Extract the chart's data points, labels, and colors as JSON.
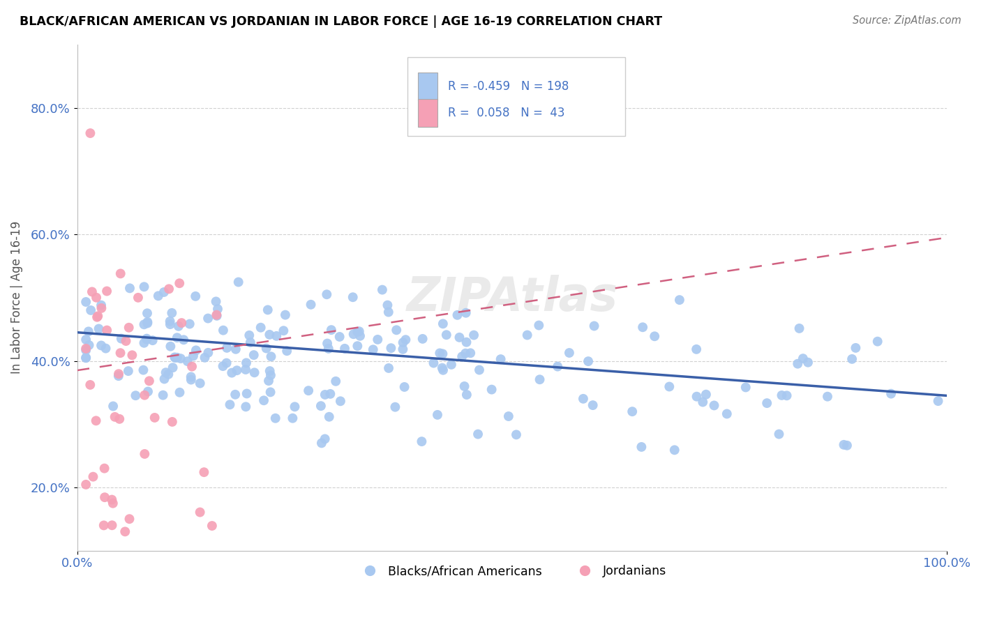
{
  "title": "BLACK/AFRICAN AMERICAN VS JORDANIAN IN LABOR FORCE | AGE 16-19 CORRELATION CHART",
  "source": "Source: ZipAtlas.com",
  "ylabel": "In Labor Force | Age 16-19",
  "xlim": [
    0.0,
    1.0
  ],
  "ylim": [
    0.1,
    0.9
  ],
  "yticks": [
    0.2,
    0.4,
    0.6,
    0.8
  ],
  "ytick_labels": [
    "20.0%",
    "40.0%",
    "60.0%",
    "80.0%"
  ],
  "xticks": [
    0.0,
    1.0
  ],
  "xtick_labels": [
    "0.0%",
    "100.0%"
  ],
  "legend_r_blue": "-0.459",
  "legend_n_blue": "198",
  "legend_r_pink": "0.058",
  "legend_n_pink": "43",
  "blue_color": "#a8c8f0",
  "pink_color": "#f5a0b5",
  "blue_line_color": "#3a5fa8",
  "pink_line_color": "#d06080",
  "background_color": "#ffffff",
  "grid_color": "#cccccc",
  "title_color": "#000000",
  "blue_line_start_y": 0.445,
  "blue_line_end_y": 0.345,
  "pink_line_start_y": 0.385,
  "pink_line_end_y": 0.595
}
